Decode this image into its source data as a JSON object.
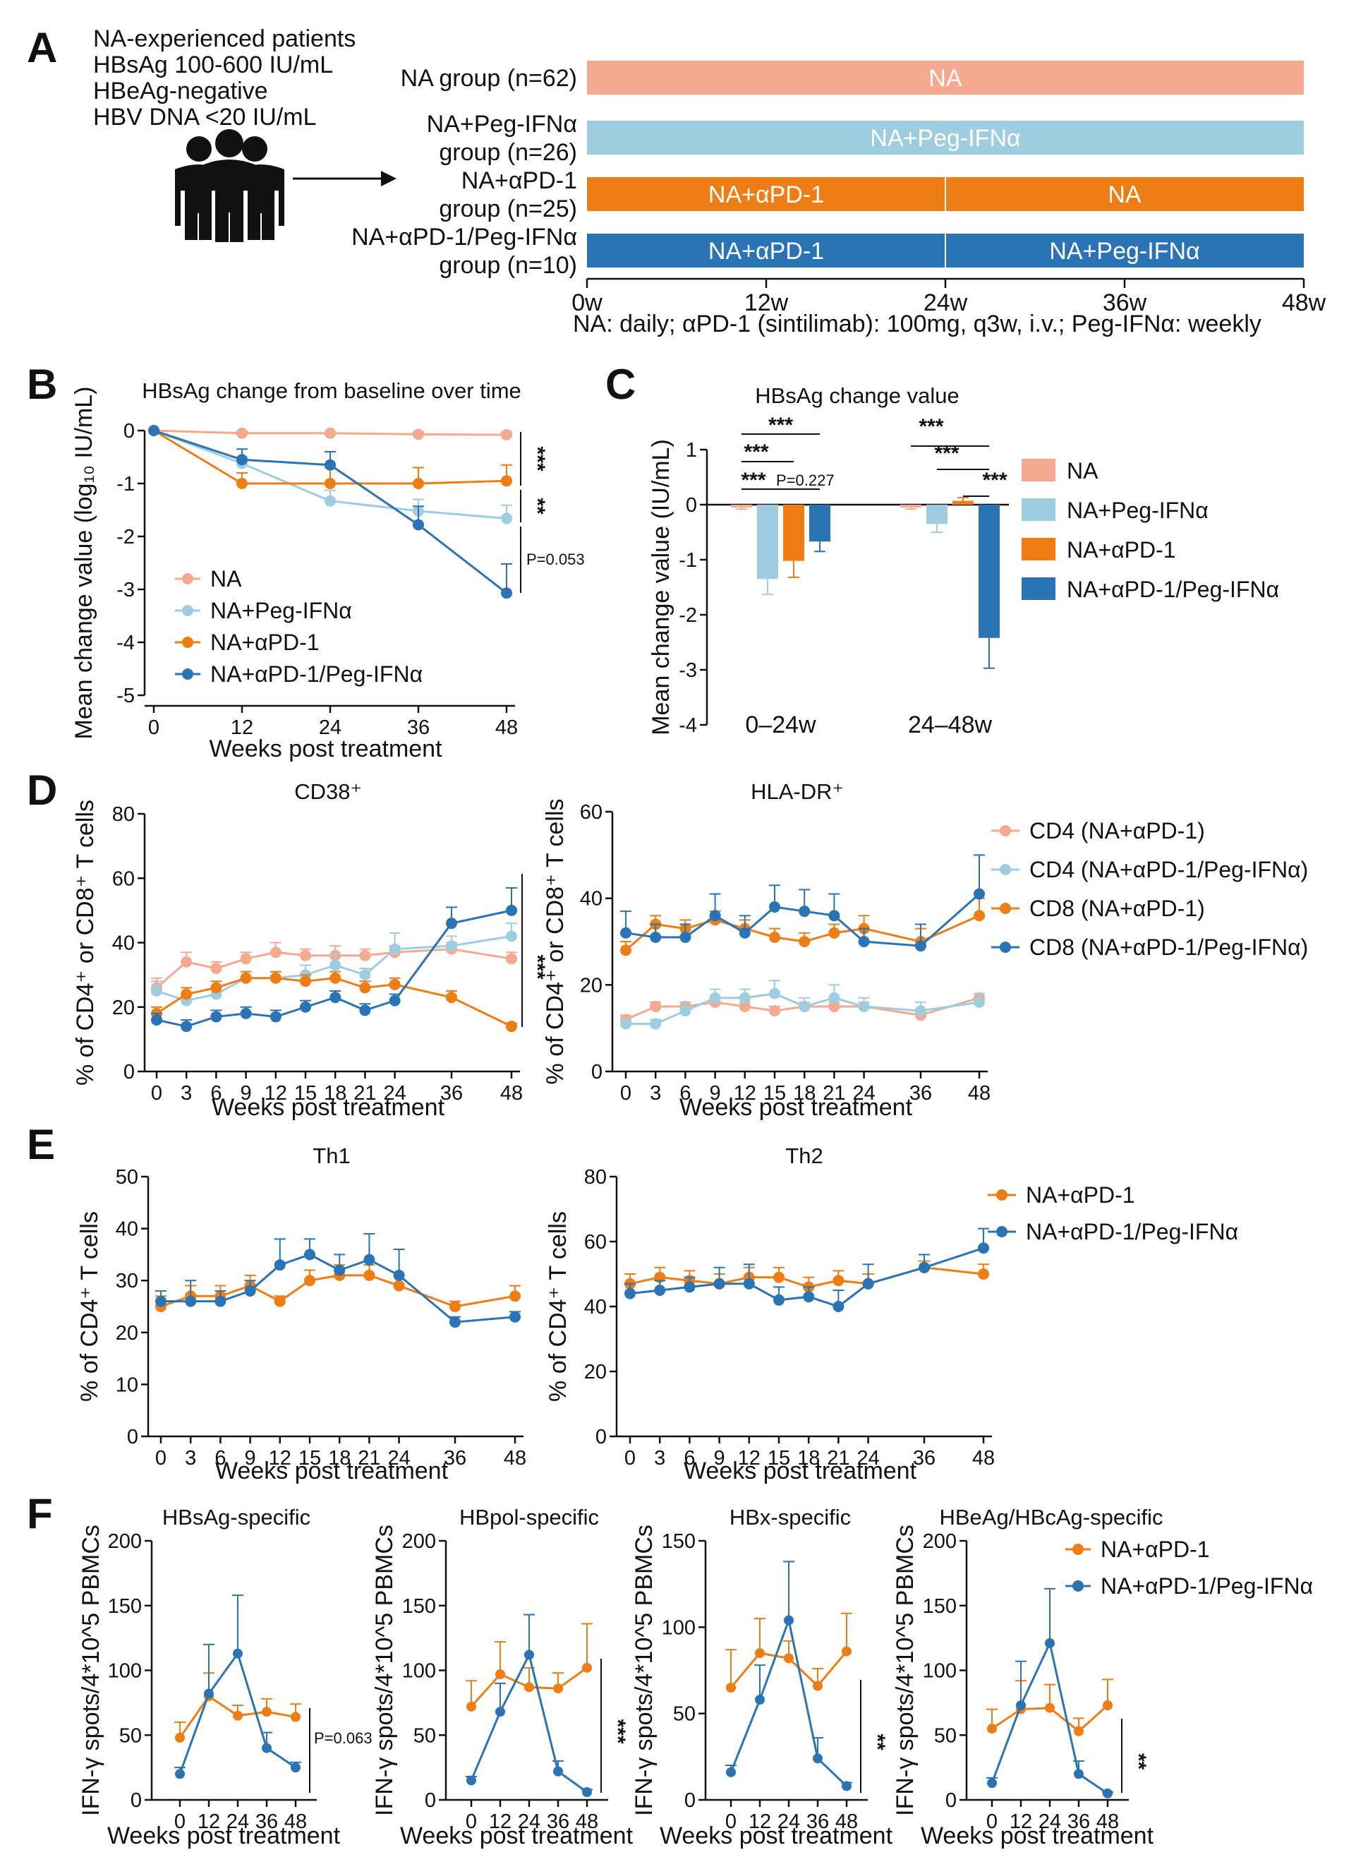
{
  "colors": {
    "na": "#f5a98f",
    "peg": "#9ecde0",
    "apd1": "#ee7d14",
    "combo": "#2a73b4",
    "axis": "#111111"
  },
  "panelA": {
    "label": "A",
    "info_lines": [
      "NA-experienced patients",
      "HBsAg 100-600 IU/mL",
      "HBeAg-negative",
      "HBV DNA <20 IU/mL"
    ],
    "icon": "people-icon",
    "groups": [
      {
        "label_lines": [
          "NA group (n=62)"
        ],
        "color_key": "na",
        "segments": [
          {
            "text": "NA",
            "start": 0,
            "end": 48
          }
        ]
      },
      {
        "label_lines": [
          "NA+Peg-IFNα",
          "group (n=26)"
        ],
        "color_key": "peg",
        "segments": [
          {
            "text": "NA+Peg-IFNα",
            "start": 0,
            "end": 48
          }
        ]
      },
      {
        "label_lines": [
          "NA+αPD-1",
          "group (n=25)"
        ],
        "color_key": "apd1",
        "segments": [
          {
            "text": "NA+αPD-1",
            "start": 0,
            "end": 24
          },
          {
            "text": "NA",
            "start": 24,
            "end": 48
          }
        ]
      },
      {
        "label_lines": [
          "NA+αPD-1/Peg-IFNα",
          "group (n=10)"
        ],
        "color_key": "combo",
        "segments": [
          {
            "text": "NA+αPD-1",
            "start": 0,
            "end": 24
          },
          {
            "text": "NA+Peg-IFNα",
            "start": 24,
            "end": 48
          }
        ]
      }
    ],
    "timeline_ticks": [
      "0w",
      "12w",
      "24w",
      "36w",
      "48w"
    ],
    "dosing_note": "NA: daily; αPD-1 (sintilimab): 100mg, q3w, i.v.; Peg-IFNα: weekly"
  },
  "panelB": {
    "label": "B",
    "chart_data": {
      "type": "line",
      "title": "HBsAg change from baseline over time",
      "xlabel": "Weeks post treatment",
      "ylabel": "Mean change value  (log₁₀ IU/mL)",
      "x": [
        0,
        12,
        24,
        36,
        48
      ],
      "xlim": [
        0,
        48
      ],
      "ylim": [
        -5,
        0
      ],
      "yticks": [
        0,
        -1,
        -2,
        -3,
        -4,
        -5
      ],
      "series": [
        {
          "name": "NA",
          "color_key": "na",
          "values": [
            0,
            -0.05,
            -0.05,
            -0.07,
            -0.08
          ],
          "err": [
            0,
            0.03,
            0.03,
            0.04,
            0.05
          ]
        },
        {
          "name": "NA+Peg-IFNα",
          "color_key": "peg",
          "values": [
            0,
            -0.62,
            -1.33,
            -1.52,
            -1.66
          ],
          "err": [
            0,
            0.12,
            0.2,
            0.22,
            0.25
          ]
        },
        {
          "name": "NA+αPD-1",
          "color_key": "apd1",
          "values": [
            0,
            -1.0,
            -1.0,
            -1.0,
            -0.95
          ],
          "err": [
            0,
            0.2,
            0.3,
            0.3,
            0.3
          ]
        },
        {
          "name": "NA+αPD-1/Peg-IFNα",
          "color_key": "combo",
          "values": [
            0,
            -0.55,
            -0.65,
            -1.78,
            -3.07
          ],
          "err": [
            0,
            0.2,
            0.25,
            0.35,
            0.55
          ]
        }
      ],
      "significance": [
        "***",
        "**",
        "P=0.053"
      ],
      "legend": "bottom-left"
    }
  },
  "panelC": {
    "label": "C",
    "chart_data": {
      "type": "bar",
      "title": "HBsAg change value",
      "ylabel": "Mean change value  (IU/mL)",
      "categories": [
        "0–24w",
        "24–48w"
      ],
      "ylim": [
        -4,
        1
      ],
      "yticks": [
        1,
        0,
        -1,
        -2,
        -3,
        -4
      ],
      "series": [
        {
          "name": "NA",
          "color_key": "na",
          "values": [
            -0.05,
            -0.05
          ],
          "err": [
            0.03,
            0.03
          ]
        },
        {
          "name": "NA+Peg-IFNα",
          "color_key": "peg",
          "values": [
            -1.35,
            -0.35
          ],
          "err": [
            0.28,
            0.15
          ]
        },
        {
          "name": "NA+αPD-1",
          "color_key": "apd1",
          "values": [
            -1.02,
            0.07
          ],
          "err": [
            0.3,
            0.06
          ]
        },
        {
          "name": "NA+αPD-1/Peg-IFNα",
          "color_key": "combo",
          "values": [
            -0.67,
            -2.42
          ],
          "err": [
            0.18,
            0.55
          ]
        }
      ],
      "significance": [
        "***",
        "***",
        "***",
        "P=0.227",
        "***",
        "***",
        "***"
      ],
      "legend": "right"
    }
  },
  "panelD": {
    "label": "D",
    "chart_data": [
      {
        "type": "line",
        "title": "CD38⁺",
        "xlabel": "Weeks post treatment",
        "ylabel": "% of CD4⁺ or CD8⁺ T cells",
        "x": [
          0,
          3,
          6,
          9,
          12,
          15,
          18,
          21,
          24,
          36,
          48
        ],
        "ylim": [
          0,
          80
        ],
        "yticks": [
          0,
          20,
          40,
          60,
          80
        ],
        "series": [
          {
            "name": "CD4 (NA+αPD-1)",
            "color_key": "na",
            "values": [
              26,
              34,
              32,
              35,
              37,
              36,
              36,
              36,
              37,
              38,
              35
            ],
            "err": [
              3,
              3,
              2,
              2,
              3,
              2,
              3,
              2,
              2,
              2,
              2
            ]
          },
          {
            "name": "CD4 (NA+αPD-1/Peg-IFNα)",
            "color_key": "peg",
            "values": [
              25,
              22,
              24,
              29,
              29,
              30,
              33,
              30,
              38,
              39,
              42
            ],
            "err": [
              3,
              2,
              2,
              2,
              2,
              3,
              3,
              2,
              5,
              3,
              4
            ]
          },
          {
            "name": "CD8 (NA+αPD-1)",
            "color_key": "apd1",
            "values": [
              18,
              24,
              26,
              29,
              29,
              28,
              29,
              26,
              27,
              23,
              14
            ],
            "err": [
              2,
              2,
              2,
              2,
              2,
              2,
              2,
              2,
              2,
              2,
              1
            ]
          },
          {
            "name": "CD8 (NA+αPD-1/Peg-IFNα)",
            "color_key": "combo",
            "values": [
              16,
              14,
              17,
              18,
              17,
              20,
              23,
              19,
              22,
              46,
              50
            ],
            "err": [
              2,
              2,
              2,
              2,
              2,
              2,
              2,
              2,
              2,
              5,
              7
            ]
          }
        ],
        "significance": [
          "***"
        ]
      },
      {
        "type": "line",
        "title": "HLA-DR⁺",
        "xlabel": "Weeks post treatment",
        "ylabel": "% of CD4⁺ or CD8⁺ T cells",
        "x": [
          0,
          3,
          6,
          9,
          12,
          15,
          18,
          21,
          24,
          36,
          48
        ],
        "ylim": [
          0,
          60
        ],
        "yticks": [
          0,
          20,
          40,
          60
        ],
        "series": [
          {
            "name": "CD4 (NA+αPD-1)",
            "color_key": "na",
            "values": [
              12,
              15,
              15,
              16,
              15,
              14,
              15,
              15,
              15,
              13,
              17
            ],
            "err": [
              1,
              1,
              1,
              1,
              1,
              1,
              1,
              1,
              1,
              1,
              1
            ]
          },
          {
            "name": "CD4 (NA+αPD-1/Peg-IFNα)",
            "color_key": "peg",
            "values": [
              11,
              11,
              14,
              17,
              17,
              18,
              15,
              17,
              15,
              14,
              16
            ],
            "err": [
              1,
              1,
              2,
              2,
              2,
              3,
              2,
              3,
              2,
              2,
              2
            ]
          },
          {
            "name": "CD8 (NA+αPD-1)",
            "color_key": "apd1",
            "values": [
              28,
              34,
              33,
              35,
              33,
              31,
              30,
              32,
              33,
              30,
              36
            ],
            "err": [
              2,
              2,
              2,
              2,
              2,
              2,
              2,
              2,
              3,
              3,
              4
            ]
          },
          {
            "name": "CD8 (NA+αPD-1/Peg-IFNα)",
            "color_key": "combo",
            "values": [
              32,
              31,
              31,
              36,
              32,
              38,
              37,
              36,
              30,
              29,
              41
            ],
            "err": [
              5,
              3,
              3,
              5,
              4,
              5,
              5,
              5,
              3,
              5,
              9
            ]
          }
        ],
        "significance": []
      }
    ],
    "legend_labels": [
      "CD4 (NA+αPD-1)",
      "CD4 (NA+αPD-1/Peg-IFNα)",
      "CD8 (NA+αPD-1)",
      "CD8 (NA+αPD-1/Peg-IFNα)"
    ]
  },
  "panelE": {
    "label": "E",
    "chart_data": [
      {
        "type": "line",
        "title": "Th1",
        "xlabel": "Weeks post treatment",
        "ylabel": "% of CD4⁺ T cells",
        "x": [
          0,
          3,
          6,
          9,
          12,
          15,
          18,
          21,
          24,
          36,
          48
        ],
        "ylim": [
          0,
          50
        ],
        "yticks": [
          0,
          10,
          20,
          30,
          40,
          50
        ],
        "series": [
          {
            "name": "NA+αPD-1",
            "color_key": "apd1",
            "values": [
              25,
              27,
              27,
              29,
              26,
              30,
              31,
              31,
              29,
              25,
              27
            ],
            "err": [
              2,
              2,
              2,
              2,
              1,
              2,
              2,
              2,
              2,
              1,
              2
            ]
          },
          {
            "name": "NA+αPD-1/Peg-IFNα",
            "color_key": "combo",
            "values": [
              26,
              26,
              26,
              28,
              33,
              35,
              32,
              34,
              31,
              22,
              23
            ],
            "err": [
              2,
              4,
              2,
              2,
              5,
              3,
              3,
              5,
              5,
              1,
              1
            ]
          }
        ]
      },
      {
        "type": "line",
        "title": "Th2",
        "xlabel": "Weeks post treatment",
        "ylabel": "% of CD4⁺ T cells",
        "x": [
          0,
          3,
          6,
          9,
          12,
          15,
          18,
          21,
          24,
          36,
          48
        ],
        "ylim": [
          0,
          80
        ],
        "yticks": [
          0,
          20,
          40,
          60,
          80
        ],
        "series": [
          {
            "name": "NA+αPD-1",
            "color_key": "apd1",
            "values": [
              47,
              49,
              48,
              47,
              49,
              49,
              46,
              48,
              47,
              52,
              50
            ],
            "err": [
              3,
              3,
              3,
              3,
              3,
              3,
              3,
              3,
              3,
              2,
              3
            ]
          },
          {
            "name": "NA+αPD-1/Peg-IFNα",
            "color_key": "combo",
            "values": [
              44,
              45,
              46,
              47,
              47,
              42,
              43,
              40,
              47,
              52,
              58
            ],
            "err": [
              3,
              3,
              3,
              5,
              6,
              4,
              3,
              5,
              6,
              4,
              6
            ]
          }
        ]
      }
    ],
    "legend_labels": [
      "NA+αPD-1",
      "NA+αPD-1/Peg-IFNα"
    ]
  },
  "panelF": {
    "label": "F",
    "chart_data": [
      {
        "type": "line",
        "title": "HBsAg-specific",
        "xlabel": "Weeks post treatment",
        "ylabel": "IFN-γ spots/4*10^5 PBMCs",
        "x": [
          0,
          12,
          24,
          36,
          48
        ],
        "ylim": [
          0,
          200
        ],
        "yticks": [
          0,
          50,
          100,
          150,
          200
        ],
        "series": [
          {
            "name": "NA+αPD-1",
            "color_key": "apd1",
            "values": [
              48,
              80,
              65,
              68,
              64
            ],
            "err": [
              12,
              18,
              8,
              10,
              10
            ]
          },
          {
            "name": "NA+αPD-1/Peg-IFNα",
            "color_key": "combo",
            "values": [
              20,
              82,
              113,
              40,
              25
            ],
            "err": [
              5,
              38,
              45,
              12,
              4
            ]
          }
        ],
        "significance": [
          "P=0.063"
        ]
      },
      {
        "type": "line",
        "title": "HBpol-specific",
        "xlabel": "Weeks post treatment",
        "ylabel": "IFN-γ spots/4*10^5 PBMCs",
        "x": [
          0,
          12,
          24,
          36,
          48
        ],
        "ylim": [
          0,
          200
        ],
        "yticks": [
          0,
          50,
          100,
          150,
          200
        ],
        "series": [
          {
            "name": "NA+αPD-1",
            "color_key": "apd1",
            "values": [
              72,
              97,
              87,
              86,
              102
            ],
            "err": [
              20,
              25,
              15,
              12,
              34
            ]
          },
          {
            "name": "NA+αPD-1/Peg-IFNα",
            "color_key": "combo",
            "values": [
              15,
              68,
              112,
              22,
              6
            ],
            "err": [
              3,
              22,
              31,
              8,
              2
            ]
          }
        ],
        "significance": [
          "***"
        ]
      },
      {
        "type": "line",
        "title": "HBx-specific",
        "xlabel": "Weeks post treatment",
        "ylabel": "IFN-γ spots/4*10^5 PBMCs",
        "x": [
          0,
          12,
          24,
          36,
          48
        ],
        "ylim": [
          0,
          150
        ],
        "yticks": [
          0,
          50,
          100,
          150
        ],
        "series": [
          {
            "name": "NA+αPD-1",
            "color_key": "apd1",
            "values": [
              65,
              85,
              82,
              66,
              86
            ],
            "err": [
              22,
              20,
              10,
              10,
              22
            ]
          },
          {
            "name": "NA+αPD-1/Peg-IFNα",
            "color_key": "combo",
            "values": [
              16,
              58,
              104,
              24,
              8
            ],
            "err": [
              4,
              20,
              34,
              12,
              2
            ]
          }
        ],
        "significance": [
          "**"
        ]
      },
      {
        "type": "line",
        "title": "HBeAg/HBcAg-specific",
        "xlabel": "Weeks post treatment",
        "ylabel": "IFN-γ spots/4*10^5 PBMCs",
        "x": [
          0,
          12,
          24,
          36,
          48
        ],
        "ylim": [
          0,
          200
        ],
        "yticks": [
          0,
          50,
          100,
          150,
          200
        ],
        "series": [
          {
            "name": "NA+αPD-1",
            "color_key": "apd1",
            "values": [
              55,
              70,
              71,
              53,
              73
            ],
            "err": [
              15,
              22,
              18,
              10,
              20
            ]
          },
          {
            "name": "NA+αPD-1/Peg-IFNα",
            "color_key": "combo",
            "values": [
              13,
              73,
              121,
              20,
              5
            ],
            "err": [
              4,
              34,
              42,
              10,
              1
            ]
          }
        ],
        "significance": [
          "**"
        ]
      }
    ],
    "legend_labels": [
      "NA+αPD-1",
      "NA+αPD-1/Peg-IFNα"
    ]
  }
}
